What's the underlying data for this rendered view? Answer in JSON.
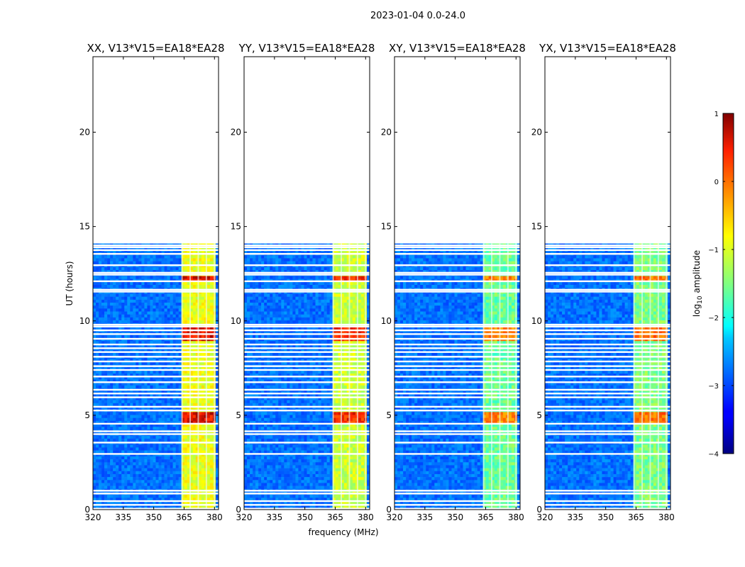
{
  "chart_data": {
    "type": "heatmap",
    "suptitle": "2023-01-04 0.0-24.0",
    "xlabel": "frequency (MHz)",
    "ylabel": "UT (hours)",
    "xlim": [
      320,
      382
    ],
    "ylim": [
      0,
      24
    ],
    "xticks": [
      "320",
      "335",
      "350",
      "365",
      "380"
    ],
    "xtick_values": [
      320,
      335,
      350,
      365,
      380
    ],
    "yticks": [
      "0",
      "5",
      "10",
      "15",
      "20"
    ],
    "ytick_values": [
      0,
      5,
      10,
      15,
      20
    ],
    "colorbar": {
      "label": "log",
      "label_sub": "10",
      "label_rest": " amplitude",
      "range": [
        -4,
        1
      ],
      "ticks": [
        "1",
        "0",
        "−1",
        "−2",
        "−3",
        "−4"
      ],
      "tick_values": [
        1,
        0,
        -1,
        -2,
        -3,
        -4
      ]
    },
    "data_extent_hours": [
      0,
      14.1
    ],
    "rfi_band_mhz": [
      363,
      380
    ],
    "rfi_channels_mhz": [
      364,
      368,
      372,
      376,
      380
    ],
    "panels": [
      {
        "title": "XX, V13*V15=EA18*EA28",
        "rfi_level": 0.62
      },
      {
        "title": "YY, V13*V15=EA18*EA28",
        "rfi_level": 0.58
      },
      {
        "title": "XY, V13*V15=EA18*EA28",
        "rfi_level": 0.48
      },
      {
        "title": "YX, V13*V15=EA18*EA28",
        "rfi_level": 0.5
      }
    ],
    "flagged_gaps_hours": [
      0.05,
      0.25,
      0.45,
      0.85,
      1.0,
      2.95,
      3.55,
      4.0,
      4.15,
      4.55,
      5.25,
      5.45,
      5.95,
      6.15,
      6.35,
      6.75,
      7.05,
      7.4,
      7.6,
      7.85,
      8.1,
      8.35,
      8.55,
      8.75,
      9.05,
      9.3,
      9.5,
      9.7,
      9.8,
      11.55,
      11.65,
      12.1,
      12.45,
      12.55,
      12.95,
      13.55,
      13.75,
      13.9,
      14.0
    ],
    "strong_rfi_hours": [
      [
        4.5,
        5.2
      ],
      [
        9.0,
        9.7
      ],
      [
        12.0,
        12.4
      ]
    ]
  }
}
